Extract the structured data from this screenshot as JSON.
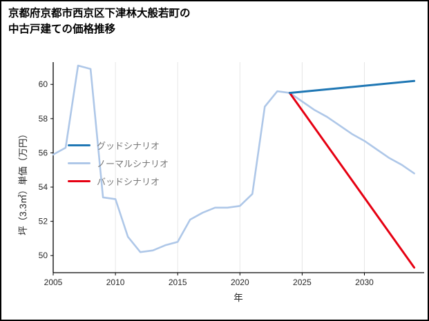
{
  "frame": {
    "border_color": "#000000",
    "background": "#ffffff"
  },
  "title": "京都府京都市西京区下津林大般若町の\n中古戸建ての価格推移",
  "chart_data": {
    "type": "line",
    "title": "京都府京都市西京区下津林大般若町の中古戸建ての価格推移",
    "xlabel": "年",
    "ylabel": "坪（3.3㎡）単価（万円）",
    "xlim": [
      2005,
      2034.8
    ],
    "ylim": [
      49,
      61.3
    ],
    "xticks": [
      2005,
      2010,
      2015,
      2020,
      2025,
      2030
    ],
    "yticks": [
      50,
      52,
      54,
      56,
      58,
      60
    ],
    "grid": "vertical-only",
    "grid_color": "#e6e6e6",
    "axis_color": "#000000",
    "legend_position": "center-left",
    "draw_order": [
      1,
      2,
      0
    ],
    "series": [
      {
        "name": "グッドシナリオ",
        "color": "#1f77b4",
        "width": 3,
        "x": [
          2024,
          2034
        ],
        "y": [
          59.5,
          60.2
        ]
      },
      {
        "name": "ノーマルシナリオ",
        "color": "#aec7e8",
        "width": 2.6,
        "x": [
          2005,
          2006,
          2007,
          2008,
          2009,
          2010,
          2011,
          2012,
          2013,
          2014,
          2015,
          2016,
          2017,
          2018,
          2019,
          2020,
          2021,
          2022,
          2023,
          2024,
          2025,
          2026,
          2027,
          2028,
          2029,
          2030,
          2031,
          2032,
          2033,
          2034
        ],
        "y": [
          55.9,
          56.3,
          61.1,
          60.9,
          53.4,
          53.3,
          51.1,
          50.2,
          50.3,
          50.6,
          50.8,
          52.1,
          52.5,
          52.8,
          52.8,
          52.9,
          53.6,
          58.7,
          59.6,
          59.5,
          59.0,
          58.5,
          58.1,
          57.6,
          57.1,
          56.7,
          56.2,
          55.7,
          55.3,
          54.8
        ]
      },
      {
        "name": "バッドシナリオ",
        "color": "#e60012",
        "width": 3,
        "x": [
          2024,
          2034
        ],
        "y": [
          59.5,
          49.3
        ]
      }
    ]
  }
}
